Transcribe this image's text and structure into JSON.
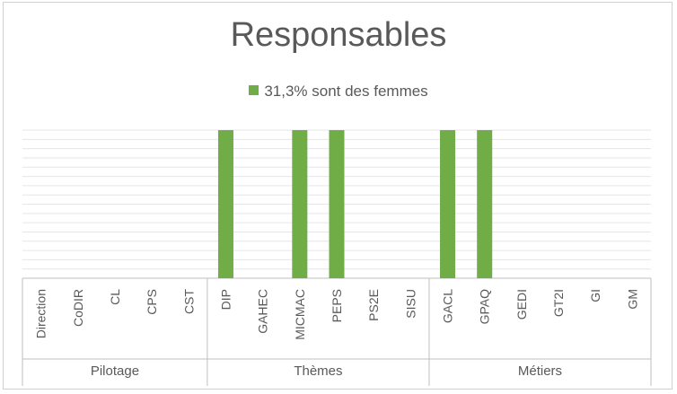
{
  "chart_data": {
    "type": "bar",
    "title": "Responsables",
    "legend": {
      "position": "top",
      "entries": [
        "31,3% sont des femmes"
      ]
    },
    "grid": true,
    "ylim": [
      0,
      1
    ],
    "categories": [
      "Direction",
      "CoDIR",
      "CL",
      "CPS",
      "CST",
      "DIP",
      "GAHEC",
      "MICMAC",
      "PEPS",
      "PS2E",
      "SISU",
      "GACL",
      "GPAQ",
      "GEDI",
      "GT2I",
      "GI",
      "GM"
    ],
    "groups": [
      {
        "label": "Pilotage",
        "count": 5
      },
      {
        "label": "Thèmes",
        "count": 6
      },
      {
        "label": "Métiers",
        "count": 6
      }
    ],
    "series": [
      {
        "name": "31,3% sont des femmes",
        "color": "#70ad47",
        "values": [
          0,
          0,
          0,
          0,
          0,
          1,
          0,
          1,
          1,
          0,
          0,
          1,
          1,
          0,
          0,
          0,
          0
        ]
      }
    ]
  }
}
